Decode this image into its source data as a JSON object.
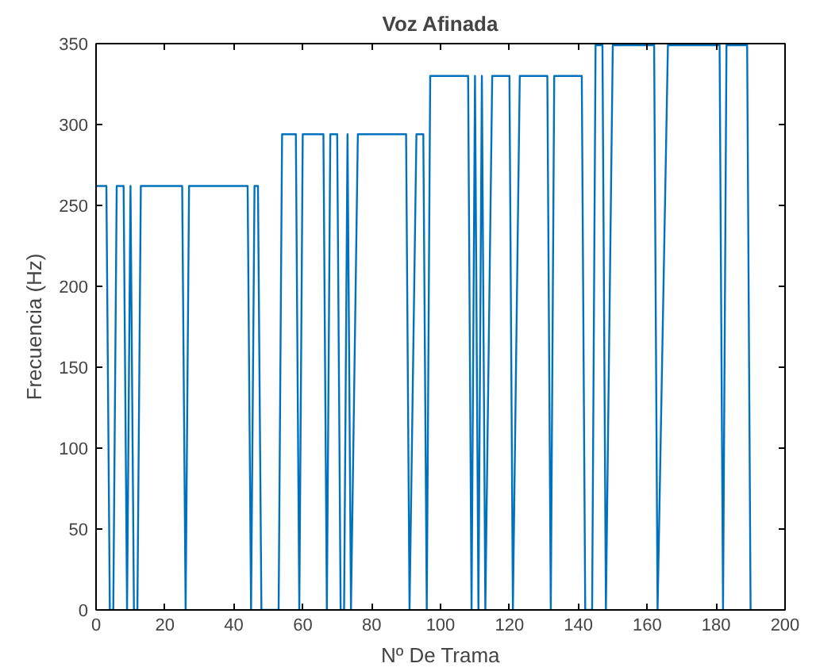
{
  "chart_data": {
    "type": "line",
    "title": "Voz Afinada",
    "xlabel": "Nº De Trama",
    "ylabel": "Frecuencia (Hz)",
    "x": [
      0,
      3,
      4,
      5,
      6,
      8,
      9,
      10,
      11,
      12,
      13,
      25,
      26,
      27,
      44,
      45,
      46,
      47,
      48,
      53,
      54,
      58,
      59,
      60,
      66,
      67,
      68,
      70,
      71,
      72,
      73,
      74,
      76,
      90,
      91,
      93,
      95,
      96,
      97,
      108,
      109,
      110,
      111,
      112,
      113,
      115,
      120,
      121,
      123,
      131,
      132,
      133,
      141,
      142,
      144,
      145,
      147,
      148,
      150,
      162,
      163,
      166,
      181,
      182,
      183,
      189,
      190
    ],
    "series": [
      {
        "color": "#0072bd",
        "values": [
          262,
          262,
          0,
          0,
          262,
          262,
          0,
          262,
          0,
          0,
          262,
          262,
          0,
          262,
          262,
          0,
          262,
          262,
          0,
          0,
          294,
          294,
          0,
          294,
          294,
          0,
          294,
          294,
          0,
          0,
          294,
          0,
          294,
          294,
          0,
          294,
          294,
          0,
          330,
          330,
          0,
          330,
          0,
          330,
          0,
          330,
          330,
          0,
          330,
          330,
          0,
          330,
          330,
          0,
          0,
          349,
          349,
          0,
          349,
          349,
          0,
          349,
          349,
          0,
          349,
          349,
          0
        ]
      }
    ],
    "xlim": [
      0,
      200
    ],
    "xticks": [
      0,
      20,
      40,
      60,
      80,
      100,
      120,
      140,
      160,
      180,
      200
    ],
    "ylim": [
      0,
      350
    ],
    "yticks": [
      0,
      50,
      100,
      150,
      200,
      250,
      300,
      350
    ],
    "line_style": "solid"
  }
}
